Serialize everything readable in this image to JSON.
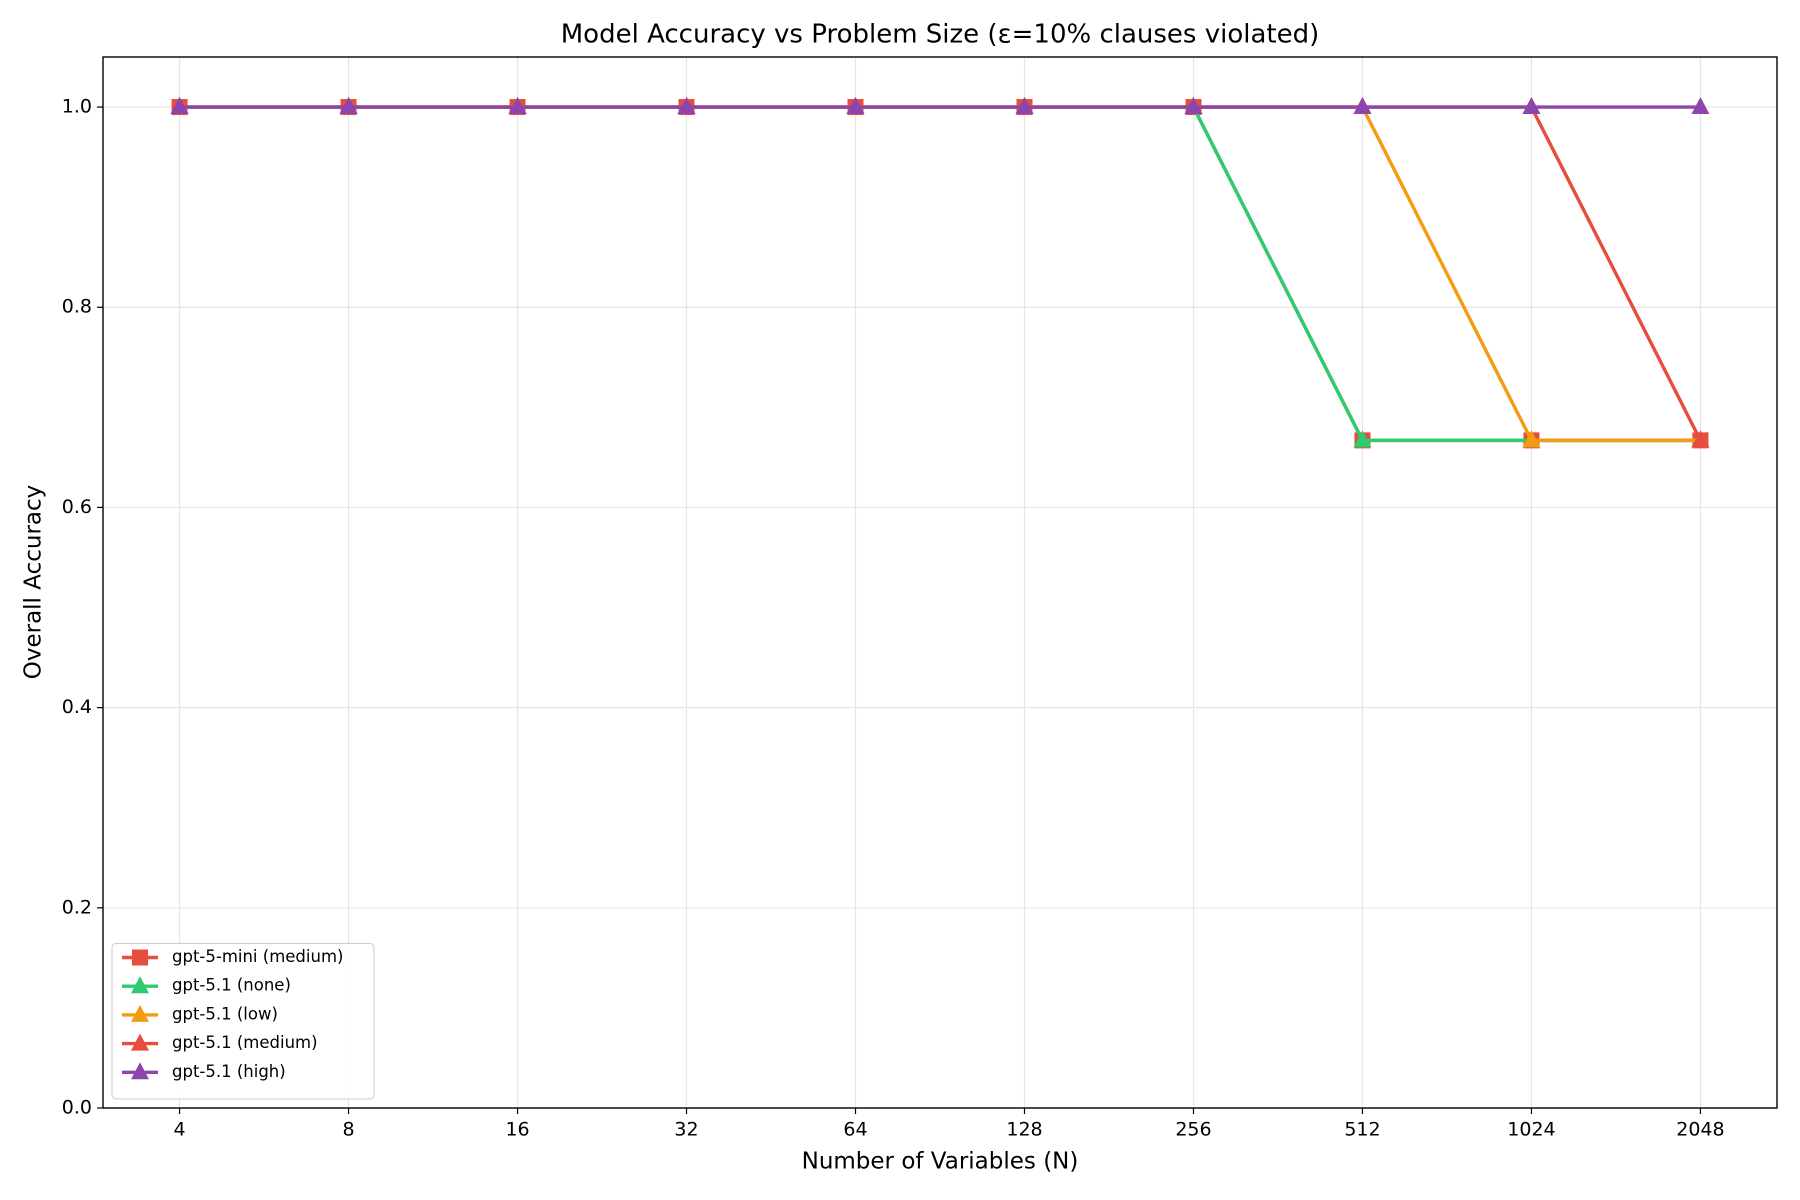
{
  "chart_data": {
    "type": "line",
    "title": "Model Accuracy vs Problem Size (ε=10% clauses violated)",
    "x_label": "Number of Variables (N)",
    "y_label": "Overall Accuracy",
    "categories": [
      "4",
      "8",
      "16",
      "32",
      "64",
      "128",
      "256",
      "512",
      "1024",
      "2048"
    ],
    "ylim": [
      0,
      1.05
    ],
    "yticks": [
      {
        "value": 0,
        "label": "0.0"
      },
      {
        "value": 0.2,
        "label": "0.2"
      },
      {
        "value": 0.4,
        "label": "0.4"
      },
      {
        "value": 0.6,
        "label": "0.6"
      },
      {
        "value": 0.8,
        "label": "0.8"
      },
      {
        "value": 1,
        "label": "1.0"
      }
    ],
    "grid": true,
    "legend": "lower left",
    "series": [
      {
        "name": "gpt-5-mini (medium)",
        "color": "#e74c3c",
        "marker": "square",
        "values": [
          1,
          1,
          1,
          1,
          1,
          1,
          1,
          0.667,
          0.667,
          0.667
        ]
      },
      {
        "name": "gpt-5.1 (none)",
        "color": "#2ecc71",
        "marker": "triangle",
        "values": [
          1,
          1,
          1,
          1,
          1,
          1,
          1,
          0.667,
          0.667,
          0.667
        ]
      },
      {
        "name": "gpt-5.1 (low)",
        "color": "#f39c12",
        "marker": "triangle",
        "values": [
          1,
          1,
          1,
          1,
          1,
          1,
          1,
          1,
          0.667,
          0.667
        ]
      },
      {
        "name": "gpt-5.1 (medium)",
        "color": "#e74c3c",
        "marker": "triangle",
        "values": [
          1,
          1,
          1,
          1,
          1,
          1,
          1,
          1,
          1,
          0.667
        ]
      },
      {
        "name": "gpt-5.1 (high)",
        "color": "#8e44ad",
        "marker": "triangle",
        "values": [
          1,
          1,
          1,
          1,
          1,
          1,
          1,
          1,
          1,
          1
        ]
      }
    ]
  }
}
